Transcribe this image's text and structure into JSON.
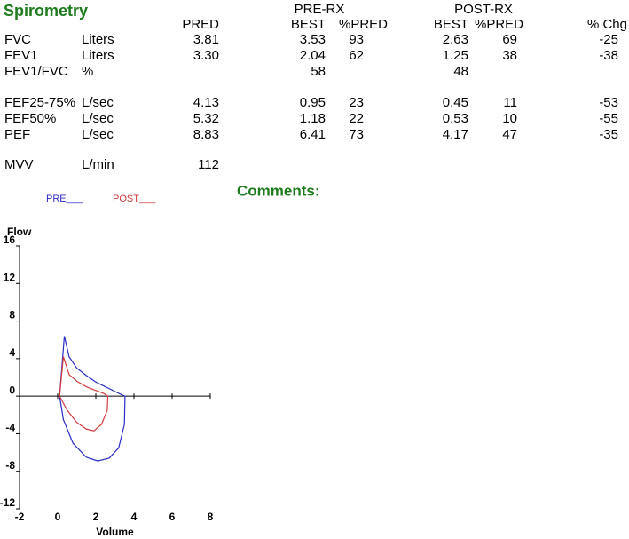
{
  "header": {
    "title": "Spirometry"
  },
  "table": {
    "group_headers": [
      "PRE-RX",
      "POST-RX"
    ],
    "columns": [
      "PRED",
      "BEST",
      "%PRED",
      "BEST",
      "%PRED",
      "% Chg"
    ],
    "rows": [
      [
        "FVC",
        "Liters",
        "3.81",
        "3.53",
        "93",
        "2.63",
        "69",
        "-25"
      ],
      [
        "FEV1",
        "Liters",
        "3.30",
        "2.04",
        "62",
        "1.25",
        "38",
        "-38"
      ],
      [
        "FEV1/FVC",
        "%",
        null,
        "58",
        null,
        "48",
        null,
        null
      ],
      [
        "FEF25-75%",
        "L/sec",
        "4.13",
        "0.95",
        "23",
        "0.45",
        "11",
        "-53"
      ],
      [
        "FEF50%",
        "L/sec",
        "5.32",
        "1.18",
        "22",
        "0.53",
        "10",
        "-55"
      ],
      [
        "PEF",
        "L/sec",
        "8.83",
        "6.41",
        "73",
        "4.17",
        "47",
        "-35"
      ],
      [
        "MVV",
        "L/min",
        "112",
        null,
        null,
        null,
        null,
        null
      ]
    ]
  },
  "comments": {
    "label": "Comments:"
  },
  "chart_data": {
    "type": "line",
    "x_label": "Volume",
    "y_label": "Flow",
    "xlim": [
      -2,
      8
    ],
    "ylim": [
      -12,
      16
    ],
    "xticks": [
      -2,
      0,
      2,
      4,
      6,
      8
    ],
    "yticks": [
      -12,
      -8,
      -4,
      0,
      4,
      8,
      12,
      16
    ],
    "series": [
      {
        "name": "PRE___",
        "color": "#2b2bc8",
        "x": [
          0.1,
          0.35,
          0.6,
          1.0,
          1.5,
          2.0,
          2.5,
          3.0,
          3.4,
          3.53,
          3.5,
          3.2,
          2.7,
          2.1,
          1.5,
          0.8,
          0.3,
          0.1
        ],
        "values": [
          0,
          6.4,
          4.2,
          3.0,
          2.2,
          1.5,
          1.0,
          0.5,
          0.1,
          0,
          -3.0,
          -5.5,
          -6.6,
          -6.9,
          -6.5,
          -5.0,
          -2.5,
          0
        ]
      },
      {
        "name": "POST___",
        "color": "#d23c3c",
        "x": [
          0.1,
          0.3,
          0.6,
          1.0,
          1.5,
          2.0,
          2.4,
          2.63,
          2.6,
          2.3,
          1.9,
          1.5,
          1.0,
          0.5,
          0.1
        ],
        "values": [
          0,
          4.2,
          2.3,
          1.6,
          1.0,
          0.6,
          0.3,
          0,
          -1.5,
          -3.0,
          -3.7,
          -3.5,
          -2.8,
          -1.5,
          0
        ]
      }
    ]
  }
}
